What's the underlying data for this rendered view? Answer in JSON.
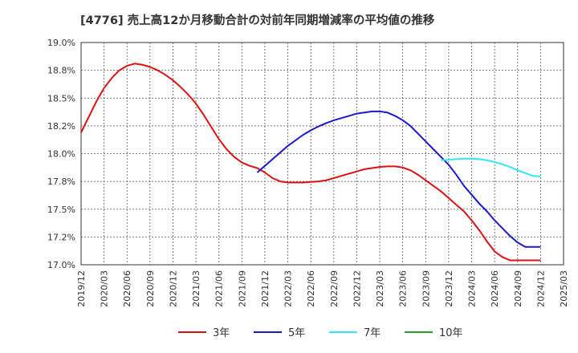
{
  "chart_data": {
    "type": "line",
    "title": "[4776]  売上高12か月移動合計の対前年同期増減率の平均値の推移",
    "xlabel": "",
    "ylabel": "",
    "ylim": [
      17.0,
      19.0
    ],
    "y_ticks": [
      "17.0%",
      "17.2%",
      "17.5%",
      "17.8%",
      "18.0%",
      "18.2%",
      "18.5%",
      "18.8%",
      "19.0%"
    ],
    "y_tick_values": [
      17.0,
      17.25,
      17.5,
      17.75,
      18.0,
      18.25,
      18.5,
      18.75,
      19.0
    ],
    "x_ticks": [
      "2019/12",
      "2020/03",
      "2020/06",
      "2020/09",
      "2020/12",
      "2021/03",
      "2021/06",
      "2021/09",
      "2021/12",
      "2022/03",
      "2022/06",
      "2022/09",
      "2022/12",
      "2023/03",
      "2023/06",
      "2023/09",
      "2023/12",
      "2024/03",
      "2024/06",
      "2024/09",
      "2024/12",
      "2025/03"
    ],
    "grid": true,
    "legend_position": "bottom",
    "series": [
      {
        "name": "3年",
        "color": "#dd1111",
        "x": [
          "2019/12",
          "2020/01",
          "2020/02",
          "2020/03",
          "2020/04",
          "2020/05",
          "2020/06",
          "2020/07",
          "2020/08",
          "2020/09",
          "2020/10",
          "2020/11",
          "2020/12",
          "2021/01",
          "2021/02",
          "2021/03",
          "2021/04",
          "2021/05",
          "2021/06",
          "2021/07",
          "2021/08",
          "2021/09",
          "2021/10",
          "2021/11",
          "2021/12",
          "2022/01",
          "2022/02",
          "2022/03",
          "2022/04",
          "2022/05",
          "2022/06",
          "2022/07",
          "2022/08",
          "2022/09",
          "2022/10",
          "2022/11",
          "2022/12",
          "2023/01",
          "2023/02",
          "2023/03",
          "2023/04",
          "2023/05",
          "2023/06",
          "2023/07",
          "2023/08",
          "2023/09",
          "2023/10",
          "2023/11",
          "2023/12",
          "2024/01",
          "2024/02",
          "2024/03",
          "2024/04",
          "2024/05",
          "2024/06",
          "2024/07",
          "2024/08",
          "2024/09",
          "2024/10",
          "2024/11",
          "2024/12"
        ],
        "values": [
          18.19,
          18.33,
          18.47,
          18.59,
          18.68,
          18.75,
          18.79,
          18.81,
          18.8,
          18.78,
          18.75,
          18.71,
          18.66,
          18.6,
          18.53,
          18.45,
          18.35,
          18.24,
          18.13,
          18.04,
          17.97,
          17.92,
          17.89,
          17.87,
          17.83,
          17.78,
          17.75,
          17.74,
          17.74,
          17.74,
          17.745,
          17.75,
          17.76,
          17.78,
          17.8,
          17.82,
          17.84,
          17.86,
          17.87,
          17.88,
          17.885,
          17.885,
          17.875,
          17.85,
          17.81,
          17.76,
          17.71,
          17.66,
          17.6,
          17.54,
          17.48,
          17.4,
          17.31,
          17.21,
          17.12,
          17.07,
          17.04,
          17.04,
          17.04,
          17.04,
          17.04
        ],
        "note_x_end": "2024/12"
      },
      {
        "name": "5年",
        "color": "#1a1acc",
        "x": [
          "2021/11",
          "2021/12",
          "2022/01",
          "2022/02",
          "2022/03",
          "2022/04",
          "2022/05",
          "2022/06",
          "2022/07",
          "2022/08",
          "2022/09",
          "2022/10",
          "2022/11",
          "2022/12",
          "2023/01",
          "2023/02",
          "2023/03",
          "2023/04",
          "2023/05",
          "2023/06",
          "2023/07",
          "2023/08",
          "2023/09",
          "2023/10",
          "2023/11",
          "2023/12",
          "2024/01",
          "2024/02",
          "2024/03",
          "2024/04",
          "2024/05",
          "2024/06",
          "2024/07",
          "2024/08",
          "2024/09",
          "2024/10",
          "2024/11",
          "2024/12"
        ],
        "values": [
          17.83,
          17.89,
          17.95,
          18.01,
          18.07,
          18.12,
          18.17,
          18.21,
          18.245,
          18.275,
          18.3,
          18.32,
          18.34,
          18.36,
          18.37,
          18.38,
          18.38,
          18.37,
          18.34,
          18.3,
          18.25,
          18.18,
          18.11,
          18.04,
          17.97,
          17.9,
          17.81,
          17.71,
          17.63,
          17.55,
          17.48,
          17.4,
          17.33,
          17.26,
          17.2,
          17.16,
          17.16,
          17.16
        ]
      },
      {
        "name": "7年",
        "color": "#33e5f5",
        "x": [
          "2023/11",
          "2023/12",
          "2024/01",
          "2024/02",
          "2024/03",
          "2024/04",
          "2024/05",
          "2024/06",
          "2024/07",
          "2024/08",
          "2024/09",
          "2024/10",
          "2024/11",
          "2024/12"
        ],
        "values": [
          17.94,
          17.945,
          17.95,
          17.955,
          17.955,
          17.95,
          17.94,
          17.925,
          17.905,
          17.88,
          17.85,
          17.825,
          17.8,
          17.795
        ]
      },
      {
        "name": "10年",
        "color": "#22a022",
        "x": [],
        "values": []
      }
    ]
  }
}
